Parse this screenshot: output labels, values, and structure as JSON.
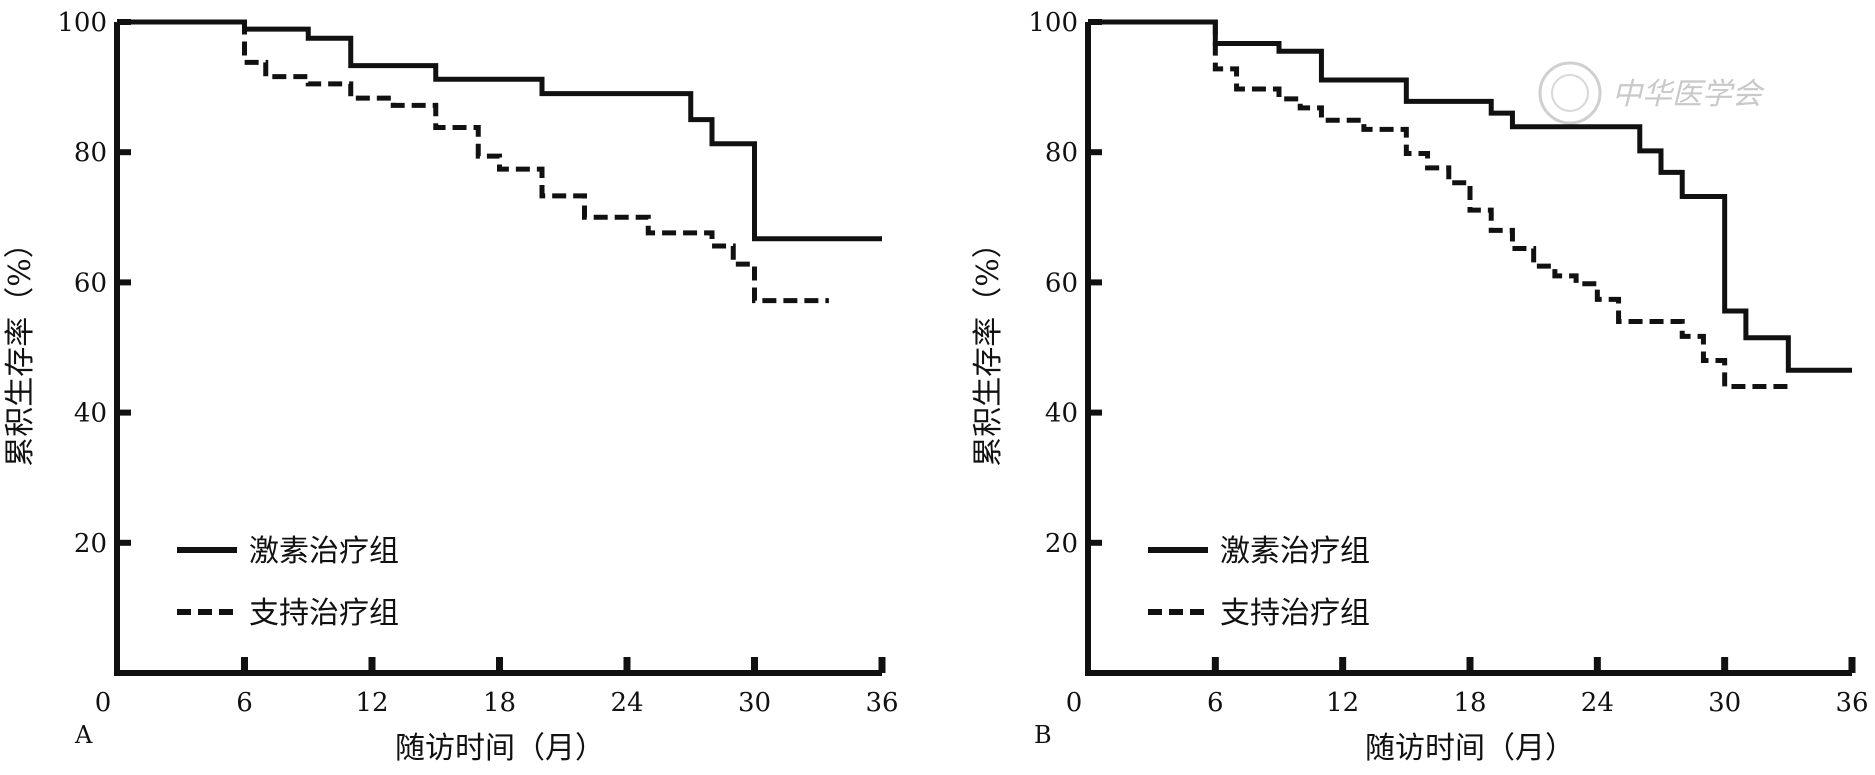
{
  "watermark": "中华医学会",
  "chart_data": [
    {
      "type": "line",
      "panel": "A",
      "xlabel": "随访时间（月）",
      "ylabel": "累积生存率（%）",
      "xlim": [
        0,
        36
      ],
      "ylim": [
        0,
        100
      ],
      "xticks": [
        0,
        6,
        12,
        18,
        24,
        30,
        36
      ],
      "yticks": [
        20,
        40,
        60,
        80,
        100
      ],
      "grid": false,
      "legend_position": "bottom-left",
      "series": [
        {
          "name": "激素治疗组",
          "style": "solid",
          "x": [
            0,
            6,
            9,
            11,
            15,
            20,
            27,
            28,
            30,
            36
          ],
          "y": [
            100,
            98.9,
            97.5,
            93.3,
            91.2,
            89.0,
            85.0,
            81.3,
            66.7,
            66.7
          ]
        },
        {
          "name": "支持治疗组",
          "style": "dashed",
          "x": [
            0,
            6,
            7,
            9,
            11,
            13,
            15,
            17,
            18,
            20,
            22,
            25,
            28,
            29,
            30,
            33.5
          ],
          "y": [
            100,
            93.8,
            91.6,
            90.5,
            88.3,
            87.2,
            83.8,
            79.4,
            77.4,
            73.3,
            70.0,
            67.6,
            65.6,
            62.8,
            57.2,
            57.2
          ]
        }
      ]
    },
    {
      "type": "line",
      "panel": "B",
      "xlabel": "随访时间（月）",
      "ylabel": "累积生存率（%）",
      "xlim": [
        0,
        36
      ],
      "ylim": [
        0,
        100
      ],
      "xticks": [
        0,
        6,
        12,
        18,
        24,
        30,
        36
      ],
      "yticks": [
        20,
        40,
        60,
        80,
        100
      ],
      "grid": false,
      "legend_position": "bottom-left",
      "series": [
        {
          "name": "激素治疗组",
          "style": "solid",
          "x": [
            0,
            6,
            9,
            11,
            15,
            19,
            20,
            26,
            27,
            28,
            30,
            31,
            33,
            36
          ],
          "y": [
            100,
            96.7,
            95.5,
            91.1,
            87.8,
            86.0,
            83.9,
            80.2,
            76.9,
            73.2,
            55.6,
            51.5,
            46.5,
            46.5
          ]
        },
        {
          "name": "支持治疗组",
          "style": "dashed",
          "x": [
            0,
            6,
            7,
            9,
            10,
            11,
            13,
            15,
            16,
            17,
            18,
            19,
            20,
            21,
            22,
            23,
            24,
            25,
            28,
            29,
            30,
            33
          ],
          "y": [
            100,
            92.8,
            89.7,
            88.2,
            86.8,
            84.9,
            83.5,
            79.8,
            77.6,
            75.3,
            71.1,
            68.0,
            65.2,
            62.5,
            61.0,
            59.8,
            57.4,
            54.0,
            51.7,
            48.0,
            44.0,
            44.0
          ]
        }
      ]
    }
  ]
}
